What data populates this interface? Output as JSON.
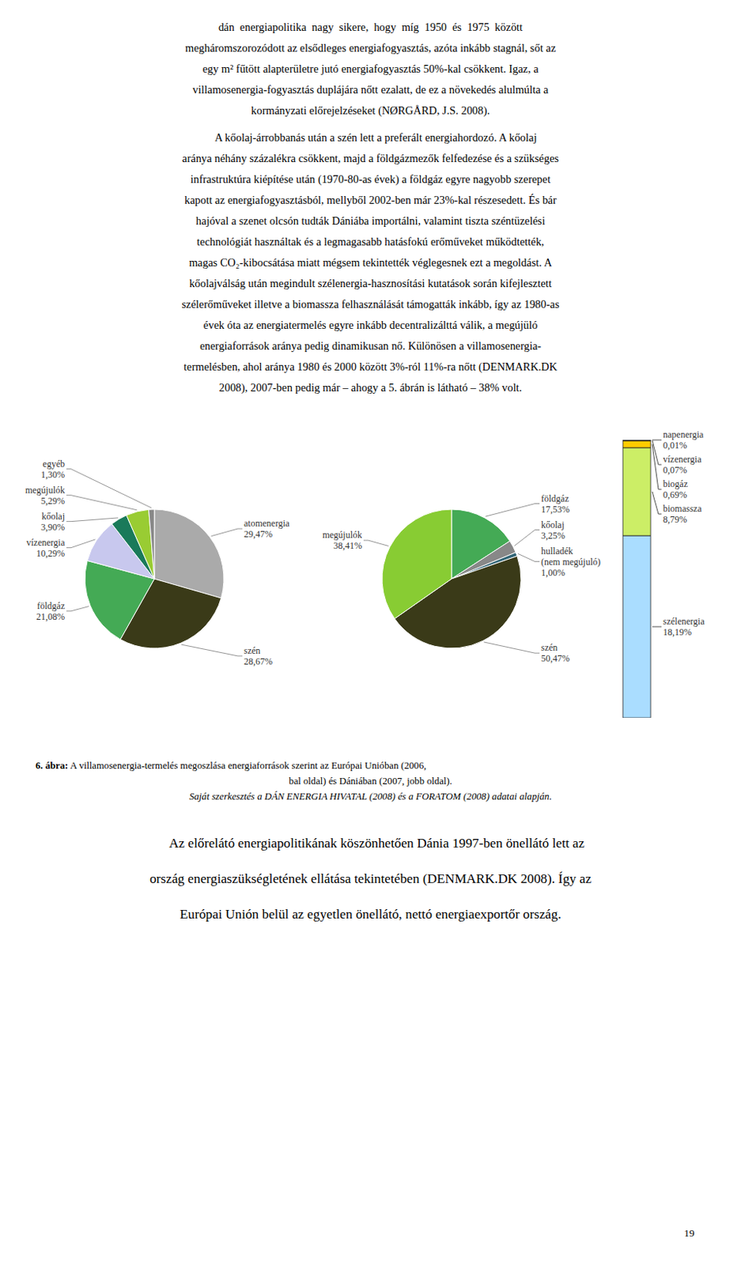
{
  "chart_data": [
    {
      "type": "pie",
      "categories": [
        "atomenergia",
        "szén",
        "földgáz",
        "vízenergia",
        "kőolaj",
        "megújulók",
        "egyéb"
      ],
      "values": [
        29.47,
        28.67,
        21.08,
        10.29,
        3.9,
        5.29,
        1.3
      ],
      "value_labels": [
        "29,47%",
        "28,67%",
        "21,08%",
        "10,29%",
        "3,90%",
        "5,29%",
        "1,30%"
      ],
      "colors": [
        "#aaaaaa",
        "#3a3a18",
        "#44aa55",
        "#c8c8ee",
        "#1a7a5a",
        "#99cc33",
        "#888888"
      ],
      "data_labels": true
    },
    {
      "type": "pie",
      "categories": [
        "földgáz",
        "kőolaj",
        "hulladék\n(nem megújuló)",
        "szén",
        "megújulók"
      ],
      "values": [
        17.53,
        3.25,
        1.0,
        50.47,
        38.41
      ],
      "value_labels": [
        "17,53%",
        "3,25%",
        "1,00%",
        "50,47%",
        "38,41%"
      ],
      "colors": [
        "#44aa55",
        "#888888",
        "#336677",
        "#3a3a18",
        "#88cc33"
      ],
      "data_labels": true
    },
    {
      "type": "bar",
      "stacked": true,
      "categories": [
        null
      ],
      "series": [
        {
          "name": "szélenergia",
          "color": "#aaddff",
          "values": [
            18.19
          ],
          "value_labels": [
            "18,19%"
          ]
        },
        {
          "name": "biomassza",
          "color": "#ccee66",
          "values": [
            8.79
          ],
          "value_labels": [
            "8,79%"
          ]
        },
        {
          "name": "biogáz",
          "color": "#ffcc00",
          "values": [
            0.69
          ],
          "value_labels": [
            "0,69%"
          ]
        },
        {
          "name": "vízenergia",
          "color": "#336677",
          "values": [
            0.07
          ],
          "value_labels": [
            "0,07%"
          ]
        },
        {
          "name": "napenergia",
          "color": "#224433",
          "values": [
            0.01
          ],
          "value_labels": [
            "0,01%"
          ]
        }
      ],
      "ylim": [
        0,
        27.75
      ],
      "tick_labels": false,
      "data_labels": true
    }
  ],
  "annotations": [
    [
      "dán  energiapolitika  nagy  sikere,  hogy  míg  1950  és  1975  között",
      "megháromszorozódott az elsődleges energiafogyasztás, azóta inkább stagnál, sőt az",
      "egy m² fűtött alapterületre jutó energiafogyasztás 50%-kal csökkent. Igaz, a",
      "villamosenergia-fogyasztás duplájára nőtt ezalatt, de ez a növekedés alulmúlta a",
      "kormányzati előrejelzéseket (NØRGÅRD, J.S. 2008)."
    ],
    [
      "    A kőolaj-árrobbanás után a szén lett a preferált energiahordozó. A kőolaj",
      "aránya néhány százalékra csökkent, majd a földgázmezők felfedezése és a szükséges",
      "infrastruktúra kiépítése után (1970-80-as évek) a földgáz egyre nagyobb szerepet",
      "kapott az energiafogyasztásból, mellyből 2002-ben már 23%-kal részesedett. És bár",
      "hajóval a szenet olcsón tudták Dániába importálni, valamint tiszta széntüzelési",
      "technológiát használtak és a legmagasabb hatásfokú erőműveket működtették,",
      "magas CO₂-kibocsátása miatt mégsem tekintették véglegesnek ezt a megoldást. A",
      "kőolajválság után megindult szélenergia-hasznosítási kutatások során kifejlesztett",
      "szélerőműveket illetve a biomassza felhasználását támogatták inkább, így az 1980-as",
      "évek óta az energiatermelés egyre inkább decentralizálttá válik, a megújüló",
      "energiaforrások aránya pedig dinamikusan nő. Különösen a villamosenergia-",
      "termelésben, ahol aránya 1980 és 2000 között 3%-ról 11%-ra nőtt (DENMARK.DK",
      "2008), 2007-ben pedig már – ahogy a 5. ábrán is látható – 38% volt."
    ],
    [
      "6. ábra:",
      " A villamosenergia-termelés megoszlása energiaforrások szerint az Európai Unióban (2006,",
      "bal oldal) és Dániában (2007, jobb oldal).",
      "Saját szerkesztés a DÁN ENERGIA HIVATAL (2008) és a FORATOM (2008) adatai alapján."
    ],
    [
      "    Az előrelátó energiapolitikának köszönhetően Dánia 1997-ben önellátó lett az",
      "ország energiaszükségletének ellátása tekintetében (DENMARK.DK 2008). Így az",
      "Európai Unión belül az egyetlen önellátó, nettó energiaexportőr ország."
    ],
    [
      "19"
    ]
  ]
}
